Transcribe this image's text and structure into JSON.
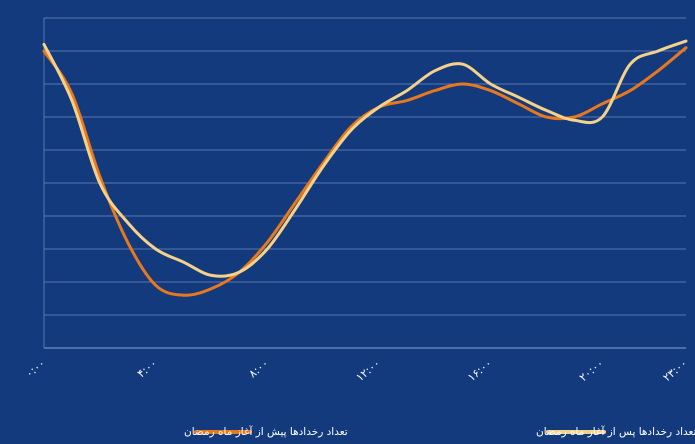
{
  "chart_data": {
    "type": "line",
    "title": "",
    "xlabel": "",
    "ylabel": "",
    "x_tick_labels": [
      "۰:۰۰",
      "۴:۰۰",
      "۸:۰۰",
      "۱۲:۰۰",
      "۱۶:۰۰",
      "۲۰:۰۰",
      "۲۳:۰۰"
    ],
    "x_tick_hours": [
      0,
      4,
      8,
      12,
      16,
      20,
      23
    ],
    "xlim": [
      0,
      23
    ],
    "ylim": [
      0,
      10
    ],
    "grid": true,
    "y_tick_labels_shown": false,
    "legend_position": "bottom",
    "series": [
      {
        "name": "تعداد رخدادها پیش از آغاز ماه رمضان",
        "color": "#e8781e",
        "points": [
          [
            0,
            9.0
          ],
          [
            1,
            7.7
          ],
          [
            2,
            5.2
          ],
          [
            3,
            3.2
          ],
          [
            4,
            1.9
          ],
          [
            5,
            1.6
          ],
          [
            6,
            1.8
          ],
          [
            7,
            2.3
          ],
          [
            8,
            3.2
          ],
          [
            9,
            4.4
          ],
          [
            10,
            5.6
          ],
          [
            11,
            6.7
          ],
          [
            12,
            7.3
          ],
          [
            13,
            7.5
          ],
          [
            14,
            7.8
          ],
          [
            15,
            8.0
          ],
          [
            16,
            7.8
          ],
          [
            17,
            7.4
          ],
          [
            18,
            7.0
          ],
          [
            19,
            7.0
          ],
          [
            20,
            7.4
          ],
          [
            21,
            7.8
          ],
          [
            22,
            8.4
          ],
          [
            23,
            9.1
          ]
        ]
      },
      {
        "name": "تعداد رخدادها پس از آغاز ماه رمضان",
        "color": "#f5d28a",
        "points": [
          [
            0,
            9.2
          ],
          [
            1,
            7.5
          ],
          [
            2,
            5.0
          ],
          [
            3,
            3.8
          ],
          [
            4,
            3.0
          ],
          [
            5,
            2.6
          ],
          [
            6,
            2.2
          ],
          [
            7,
            2.3
          ],
          [
            8,
            3.0
          ],
          [
            9,
            4.2
          ],
          [
            10,
            5.5
          ],
          [
            11,
            6.6
          ],
          [
            12,
            7.3
          ],
          [
            13,
            7.8
          ],
          [
            14,
            8.4
          ],
          [
            15,
            8.6
          ],
          [
            16,
            8.0
          ],
          [
            17,
            7.6
          ],
          [
            18,
            7.2
          ],
          [
            19,
            6.9
          ],
          [
            20,
            7.0
          ],
          [
            21,
            8.6
          ],
          [
            22,
            9.0
          ],
          [
            23,
            9.3
          ]
        ]
      }
    ]
  },
  "colors": {
    "background": "#143a7e",
    "grid": "#5a77ad",
    "axis": "#8aa1cc",
    "text": "#ffffff"
  }
}
